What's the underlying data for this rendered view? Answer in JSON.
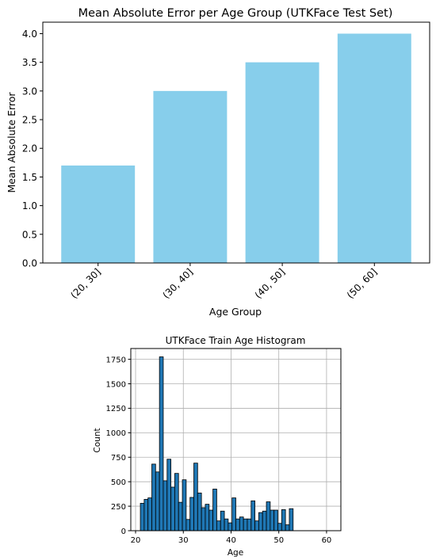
{
  "chart_data": [
    {
      "type": "bar",
      "title": "Mean Absolute Error per Age Group (UTKFace Test Set)",
      "xlabel": "Age Group",
      "ylabel": "Mean Absolute Error",
      "categories": [
        "(20, 30]",
        "(30, 40]",
        "(40, 50]",
        "(50, 60]"
      ],
      "values": [
        1.7,
        3.0,
        3.5,
        4.0
      ],
      "ylim": [
        0,
        4.2
      ],
      "yticks": [
        0.0,
        0.5,
        1.0,
        1.5,
        2.0,
        2.5,
        3.0,
        3.5,
        4.0
      ],
      "ytick_labels": [
        "0.0",
        "0.5",
        "1.0",
        "1.5",
        "2.0",
        "2.5",
        "3.0",
        "3.5",
        "4.0"
      ],
      "color": "#87ceeb",
      "grid": false
    },
    {
      "type": "bar",
      "title": "UTKFace Train Age Histogram",
      "xlabel": "Age",
      "ylabel": "Count",
      "bin_start": 21,
      "bin_width": 0.8,
      "values": [
        280,
        320,
        335,
        680,
        600,
        1775,
        510,
        730,
        445,
        585,
        290,
        520,
        115,
        340,
        690,
        385,
        235,
        270,
        210,
        425,
        100,
        200,
        120,
        80,
        335,
        120,
        140,
        120,
        120,
        305,
        100,
        185,
        200,
        295,
        210,
        210,
        75,
        215,
        60,
        225
      ],
      "xlim": [
        19.0,
        63.0
      ],
      "ylim": [
        0,
        1860
      ],
      "xticks": [
        20,
        30,
        40,
        50,
        60
      ],
      "xtick_labels": [
        "20",
        "30",
        "40",
        "50",
        "60"
      ],
      "yticks": [
        0,
        250,
        500,
        750,
        1000,
        1250,
        1500,
        1750
      ],
      "ytick_labels": [
        "0",
        "250",
        "500",
        "750",
        "1000",
        "1250",
        "1500",
        "1750"
      ],
      "color": "#1f77b4",
      "edgecolor": "#000000",
      "grid": true
    }
  ]
}
